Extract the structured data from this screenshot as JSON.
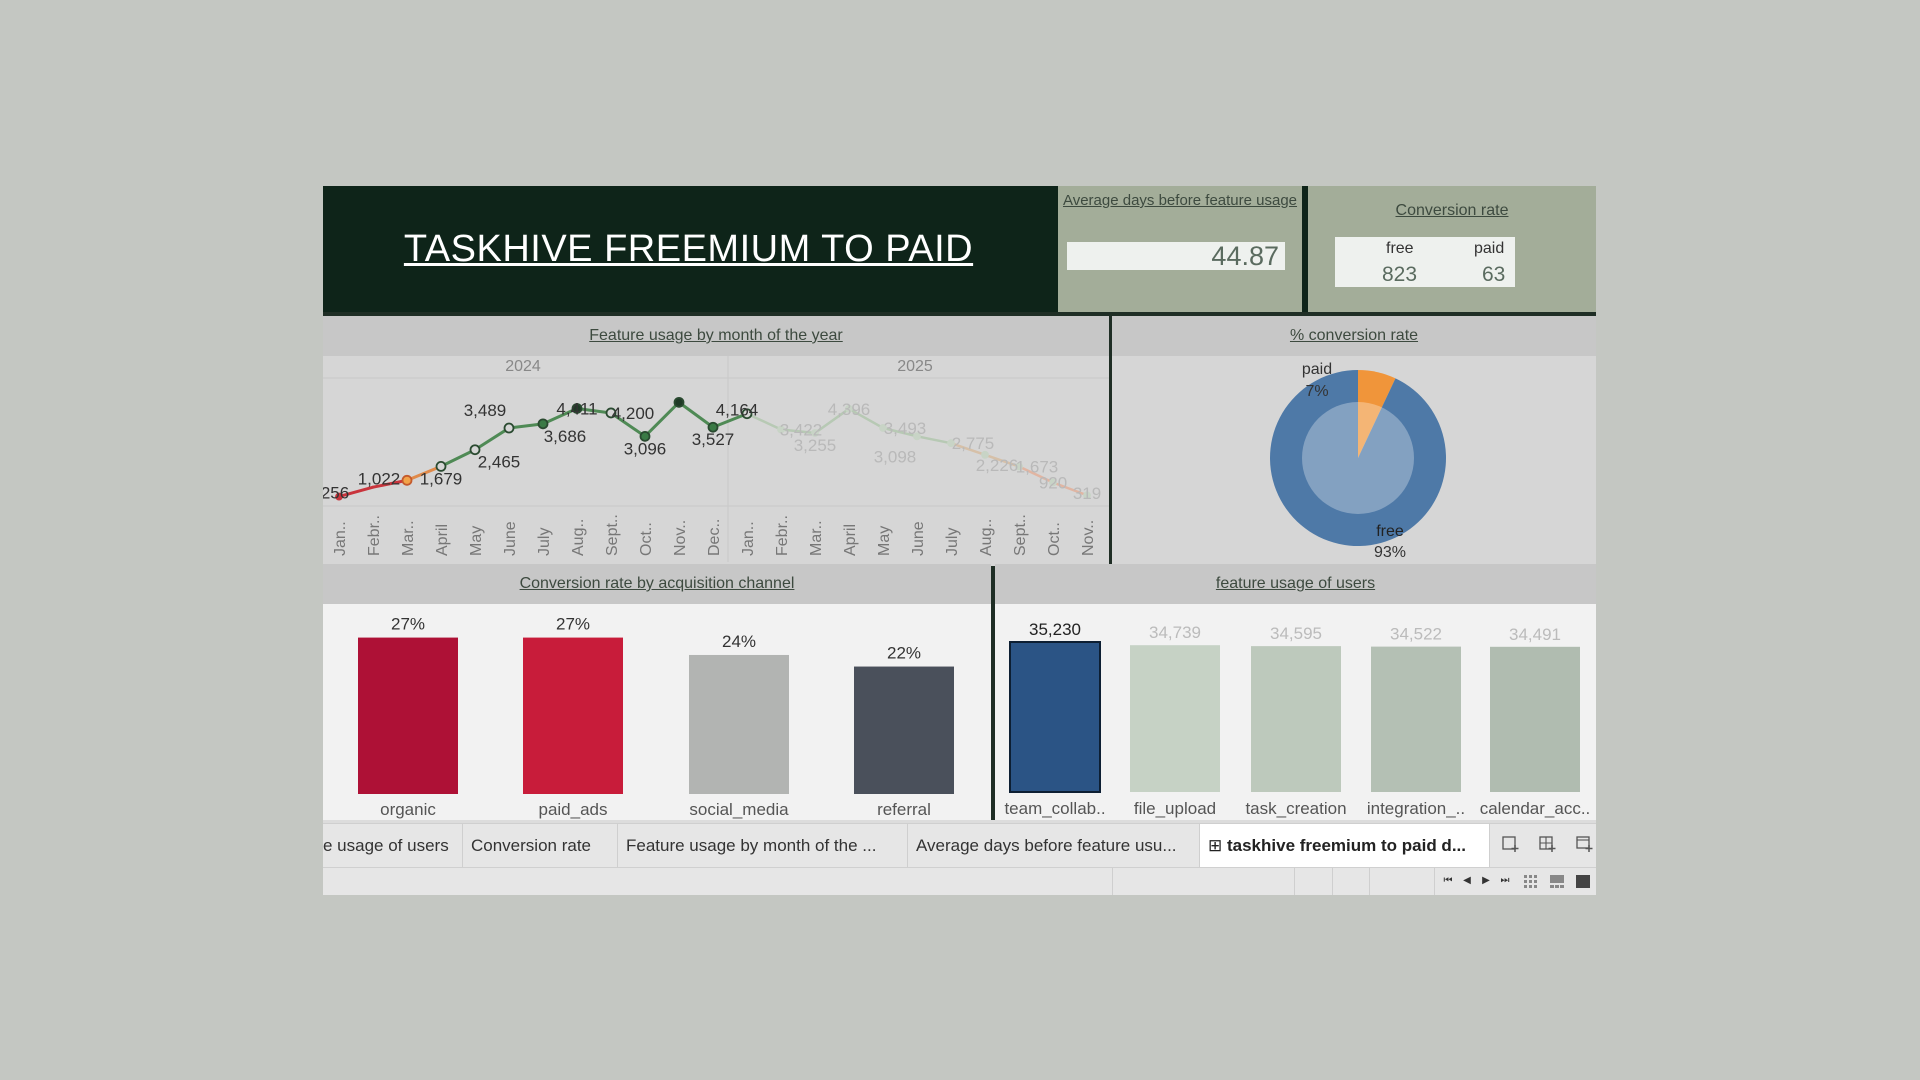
{
  "title": "TASKHIVE FREEMIUM TO PAID",
  "avg_days": {
    "title": "Average days before feature usage",
    "value": "44.87"
  },
  "conversion_rate": {
    "title": "Conversion rate",
    "free_label": "free",
    "paid_label": "paid",
    "free_value": "823",
    "paid_value": "63"
  },
  "line_panel": {
    "title": "Feature usage by month of the year"
  },
  "donut_panel": {
    "title": "% conversion rate"
  },
  "bar_panel": {
    "title": "Conversion rate by acquisition channel"
  },
  "feat_panel": {
    "title": "feature usage of users"
  },
  "chart_data": [
    {
      "type": "line",
      "title": "Feature usage by month of the year",
      "groups": [
        "2024",
        "2025"
      ],
      "categories": [
        "Jan..",
        "Febr..",
        "Mar..",
        "April",
        "May",
        "June",
        "July",
        "Aug..",
        "Sept..",
        "Oct..",
        "Nov..",
        "Dec..",
        "Jan..",
        "Febr..",
        "Mar..",
        "April",
        "May",
        "June",
        "July",
        "Aug..",
        "Sept..",
        "Oct..",
        "Nov.."
      ],
      "values": [
        256,
        null,
        1022,
        1679,
        2465,
        3489,
        3686,
        4411,
        4200,
        3096,
        4700,
        3527,
        4164,
        3422,
        3255,
        4396,
        3493,
        3098,
        2775,
        2226,
        1673,
        920,
        319
      ],
      "series_point_values": [
        256,
        700,
        1022,
        1679,
        2465,
        3489,
        3686,
        4411,
        4200,
        3096,
        4700,
        3527,
        4164,
        3422,
        3255,
        4396,
        3493,
        3098,
        2775,
        2226,
        1673,
        920,
        319
      ],
      "labels": [
        {
          "i": 0,
          "text": "256"
        },
        {
          "i": 2,
          "text": "1,022"
        },
        {
          "i": 3,
          "text": "1,679"
        },
        {
          "i": 4,
          "text": "2,465"
        },
        {
          "i": 5,
          "text": "3,489"
        },
        {
          "i": 6,
          "text": "3,686"
        },
        {
          "i": 7,
          "text": "4,411"
        },
        {
          "i": 8,
          "text": "4,200"
        },
        {
          "i": 9,
          "text": "3,096"
        },
        {
          "i": 11,
          "text": "3,527"
        },
        {
          "i": 12,
          "text": "4,164"
        },
        {
          "i": 13,
          "text": "3,422"
        },
        {
          "i": 14,
          "text": "3,255"
        },
        {
          "i": 15,
          "text": "4,396"
        },
        {
          "i": 16,
          "text": "3,493"
        },
        {
          "i": 17,
          "text": "3,098"
        },
        {
          "i": 18,
          "text": "2,775"
        },
        {
          "i": 19,
          "text": "2,226"
        },
        {
          "i": 20,
          "text": "1,673"
        },
        {
          "i": 21,
          "text": "920"
        },
        {
          "i": 22,
          "text": "319"
        }
      ],
      "ylim": [
        0,
        5000
      ]
    },
    {
      "type": "pie",
      "title": "% conversion rate",
      "slices": [
        {
          "name": "paid",
          "pct_label": "7%",
          "value": 7,
          "color": "#f0953a"
        },
        {
          "name": "free",
          "pct_label": "93%",
          "value": 93,
          "color": "#4e79a7"
        }
      ]
    },
    {
      "type": "bar",
      "title": "Conversion rate by acquisition channel",
      "categories": [
        "organic",
        "paid_ads",
        "social_media",
        "referral"
      ],
      "values": [
        27,
        27,
        24,
        22
      ],
      "value_labels": [
        "27%",
        "27%",
        "24%",
        "22%"
      ],
      "colors": [
        "#ae1136",
        "#c81c3a",
        "#b2b4b2",
        "#4a505b"
      ],
      "ylim": [
        0,
        30
      ]
    },
    {
      "type": "bar",
      "title": "feature usage of users",
      "categories": [
        "team_collab..",
        "file_upload",
        "task_creation",
        "integration_..",
        "calendar_acc.."
      ],
      "values": [
        35230,
        34739,
        34595,
        34522,
        34491
      ],
      "value_labels": [
        "35,230",
        "34,739",
        "34,595",
        "34,522",
        "34,491"
      ],
      "colors": [
        "#2b5485",
        "#c6d2c5",
        "#bdc9bc",
        "#b4c0b4",
        "#b0bcb0"
      ],
      "ylim": [
        0,
        35500
      ]
    }
  ],
  "tabs": [
    {
      "label": "e usage of users"
    },
    {
      "label": "Conversion rate"
    },
    {
      "label": "Feature usage by month of the ..."
    },
    {
      "label": "Average days before feature usu..."
    },
    {
      "label": "taskhive freemium to paid d..."
    }
  ],
  "icons": {
    "new_sheet": "new-worksheet-icon",
    "new_dashboard": "new-dashboard-icon",
    "new_story": "new-story-icon",
    "dashboard_tab": "dashboard-grid-icon"
  }
}
